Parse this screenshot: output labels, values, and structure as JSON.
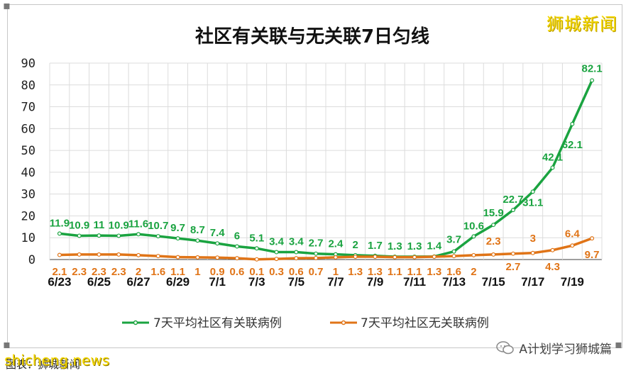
{
  "chart_data": {
    "type": "line",
    "title": "社区有关联与无关联7日匀线",
    "ylim": [
      0,
      90
    ],
    "yticks": [
      0,
      10,
      20,
      30,
      40,
      50,
      60,
      70,
      80,
      90
    ],
    "x_tick_labels": [
      "6/23",
      "6/25",
      "6/27",
      "6/29",
      "7/1",
      "7/3",
      "7/5",
      "7/7",
      "7/9",
      "7/11",
      "7/13",
      "7/15",
      "7/17",
      "7/19"
    ],
    "x": [
      "6/23",
      "6/24",
      "6/25",
      "6/26",
      "6/27",
      "6/28",
      "6/29",
      "6/30",
      "7/1",
      "7/2",
      "7/3",
      "7/4",
      "7/5",
      "7/6",
      "7/7",
      "7/8",
      "7/9",
      "7/10",
      "7/11",
      "7/12",
      "7/13",
      "7/14",
      "7/15",
      "7/16",
      "7/17",
      "7/18",
      "7/19",
      "7/20"
    ],
    "grid": true,
    "legend_position": "bottom",
    "series": [
      {
        "name": "7天平均社区有关联病例",
        "color": "#1aa340",
        "values": [
          11.9,
          10.9,
          11,
          10.9,
          11.6,
          10.7,
          9.7,
          8.7,
          7.4,
          6,
          5.1,
          3.4,
          3.4,
          2.7,
          2.4,
          2,
          1.7,
          1.3,
          1.3,
          1.4,
          3.7,
          10.6,
          15.9,
          22.7,
          31.1,
          42.1,
          62.1,
          82.1
        ],
        "labels": [
          "11.9",
          "10.9",
          "11",
          "10.9",
          "11.6",
          "10.7",
          "9.7",
          "8.7",
          "7.4",
          "6",
          "5.1",
          "3.4",
          "3.4",
          "2.7",
          "2.4",
          "2",
          "1.7",
          "1.3",
          "1.3",
          "1.4",
          "3.7",
          "10.6",
          "15.9",
          "22.7",
          "31.1",
          "42.1",
          "62.1",
          "82.1"
        ]
      },
      {
        "name": "7天平均社区无关联病例",
        "color": "#e07417",
        "values": [
          2.1,
          2.3,
          2.3,
          2.3,
          2,
          1.6,
          1.1,
          1,
          0.9,
          0.6,
          0.1,
          0.3,
          0.6,
          0.7,
          1,
          1.3,
          1.3,
          1.1,
          1.1,
          1.3,
          1.6,
          2,
          2.3,
          2.7,
          3,
          4.3,
          6.4,
          9.7
        ],
        "labels": [
          "2.1",
          "2.3",
          "2.3",
          "2.3",
          "2",
          "1.6",
          "1.1",
          "1",
          "0.9",
          "0.6",
          "0.1",
          "0.3",
          "0.6",
          "0.7",
          "1",
          "1.3",
          "1.3",
          "1.1",
          "1.1",
          "1.3",
          "1.6",
          "2",
          "2.3",
          "2.7",
          "3",
          "4.3",
          "6.4",
          "9.7"
        ]
      }
    ]
  },
  "watermarks": {
    "brand": "狮城新闻",
    "site": "shicheng.news",
    "credit": "图表：狮城新闻",
    "account": "A计划学习狮城篇",
    "account_icon": "wechat-icon"
  },
  "frame": {
    "corner_dots": "▪",
    "handle": "⋮"
  }
}
